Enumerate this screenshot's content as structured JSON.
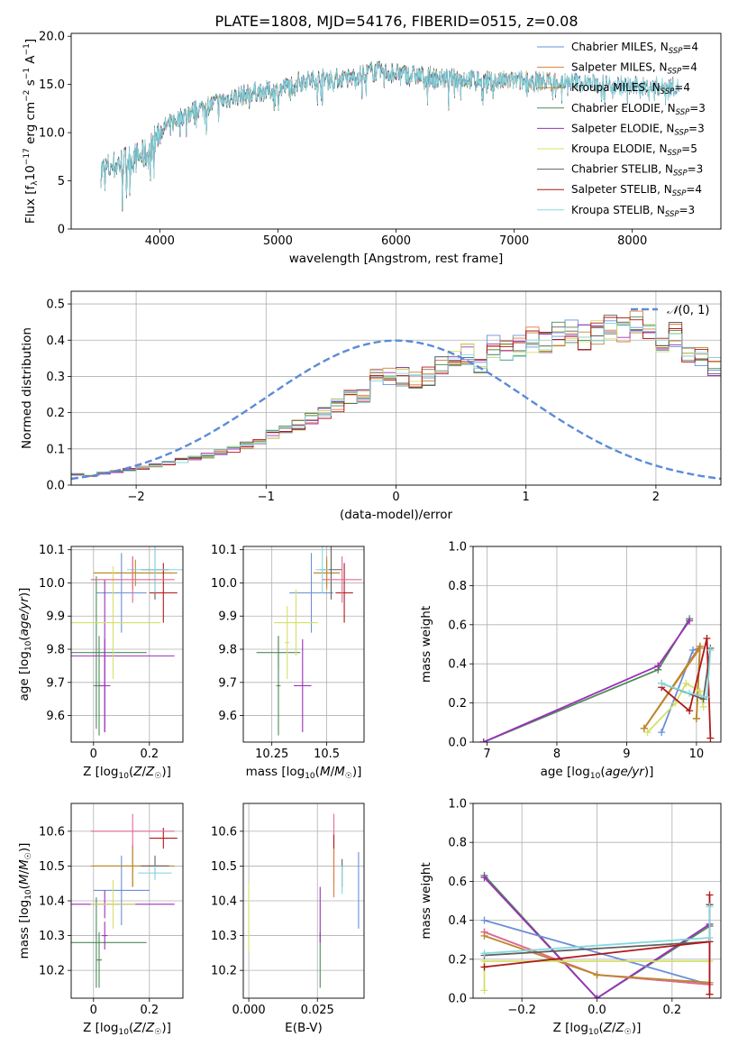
{
  "figure_title": "PLATE=1808, MJD=54176, FIBERID=0515, z=0.08",
  "colors": {
    "Chabrier MILES": "#6a8fd8",
    "Salpeter MILES": "#e07b39",
    "Kroupa MILES": "#b8892a",
    "Chabrier ELODIE": "#4f8a5a",
    "Salpeter ELODIE": "#9b30b8",
    "Kroupa ELODIE": "#d4e06a",
    "Chabrier STELIB": "#606060",
    "Salpeter STELIB": "#b01818",
    "Kroupa STELIB": "#86d8e0",
    "Salpeter MILES dist": "#e06a9a"
  },
  "chart_data": [
    {
      "id": "spectrum",
      "type": "line",
      "title": "PLATE=1808, MJD=54176, FIBERID=0515, z=0.08",
      "xlabel": "wavelength [Angstrom, rest frame]",
      "ylabel": "Flux [f_λ10^-17 erg cm^-2 s^-1 A^-1]",
      "xlim": [
        3250,
        8750
      ],
      "ylim": [
        0,
        20.3
      ],
      "xticks": [
        4000,
        5000,
        6000,
        7000,
        8000
      ],
      "yticks": [
        0,
        5,
        10,
        15,
        20
      ],
      "legend_loc": "right",
      "legend": [
        {
          "name": "Chabrier MILES, N_SSP=4",
          "base": "Chabrier MILES",
          "sub": "SSP",
          "suffix": "=4"
        },
        {
          "name": "Salpeter MILES, N_SSP=4",
          "base": "Salpeter MILES",
          "sub": "SSP",
          "suffix": "=4"
        },
        {
          "name": "Kroupa MILES, N_SSP=4",
          "base": "Kroupa MILES",
          "sub": "SSP",
          "suffix": "=4"
        },
        {
          "name": "Chabrier ELODIE, N_SSP=3",
          "base": "Chabrier ELODIE",
          "sub": "SSP",
          "suffix": "=3"
        },
        {
          "name": "Salpeter ELODIE, N_SSP=3",
          "base": "Salpeter ELODIE",
          "sub": "SSP",
          "suffix": "=3"
        },
        {
          "name": "Kroupa ELODIE, N_SSP=5",
          "base": "Kroupa ELODIE",
          "sub": "SSP",
          "suffix": "=5"
        },
        {
          "name": "Chabrier STELIB, N_SSP=3",
          "base": "Chabrier STELIB",
          "sub": "SSP",
          "suffix": "=3"
        },
        {
          "name": "Salpeter STELIB, N_SSP=4",
          "base": "Salpeter STELIB",
          "sub": "SSP",
          "suffix": "=4"
        },
        {
          "name": "Kroupa STELIB, N_SSP=3",
          "base": "Kroupa STELIB",
          "sub": "SSP",
          "suffix": "=3"
        }
      ],
      "continuum": {
        "x": [
          3500,
          3700,
          3900,
          4000,
          4200,
          4400,
          4600,
          4800,
          5000,
          5200,
          5400,
          5600,
          5800,
          6000,
          6200,
          6400,
          6600,
          6800,
          7000,
          7200,
          7400,
          7600,
          7800,
          8000,
          8200,
          8400
        ],
        "y": [
          6.0,
          7.0,
          7.8,
          10.2,
          11.8,
          12.8,
          13.6,
          14.2,
          14.4,
          15.4,
          15.6,
          15.6,
          16.4,
          16.2,
          15.9,
          15.6,
          15.6,
          15.3,
          15.4,
          15.3,
          15.3,
          15.2,
          15.0,
          14.8,
          14.8,
          14.7
        ]
      }
    },
    {
      "id": "residuals",
      "type": "histogram",
      "xlabel": "(data-model)/error",
      "ylabel": "Normed distribution",
      "xlim": [
        -2.5,
        2.5
      ],
      "ylim": [
        0,
        0.535
      ],
      "xticks": [
        -2,
        -1,
        0,
        1,
        2
      ],
      "xtick_labels": [
        "−2",
        "−1",
        "0",
        "1",
        "2"
      ],
      "yticks": [
        0.0,
        0.1,
        0.2,
        0.3,
        0.4,
        0.5
      ],
      "grid": true,
      "legend_loc": "top-right",
      "reference": {
        "name": "𝒩(0,1)",
        "label_prefix": "𝒩",
        "label_suffix": "(0, 1)",
        "mean": 0,
        "sigma": 1
      },
      "bin_width": 0.1,
      "bin_start": -2.5,
      "base_heights": [
        0.03,
        0.026,
        0.033,
        0.038,
        0.042,
        0.048,
        0.054,
        0.061,
        0.068,
        0.074,
        0.082,
        0.092,
        0.1,
        0.11,
        0.125,
        0.14,
        0.15,
        0.165,
        0.185,
        0.2,
        0.22,
        0.245,
        0.25,
        0.3,
        0.3,
        0.3,
        0.29,
        0.3,
        0.33,
        0.34,
        0.36,
        0.34,
        0.38,
        0.37,
        0.38,
        0.4,
        0.4,
        0.42,
        0.43,
        0.41,
        0.42,
        0.44,
        0.43,
        0.45,
        0.43,
        0.38,
        0.42,
        0.36,
        0.35,
        0.33,
        0.3,
        0.3,
        0.26,
        0.25,
        0.23,
        0.21,
        0.2,
        0.18,
        0.17,
        0.15,
        0.145,
        0.14,
        0.13,
        0.12,
        0.11,
        0.09,
        0.08,
        0.07,
        0.06,
        0.055,
        0.05,
        0.045,
        0.04,
        0.036,
        0.033,
        0.03,
        0.028,
        0.026,
        0.024,
        0.022
      ]
    },
    {
      "id": "age-vs-z",
      "type": "scatter",
      "xlabel": "Z [log10(Z/Z☉)]",
      "ylabel": "age [log10(age/yr)]",
      "xlim": [
        -0.08,
        0.32
      ],
      "ylim": [
        9.52,
        10.11
      ],
      "xticks": [
        0.0,
        0.2
      ],
      "yticks": [
        9.6,
        9.7,
        9.8,
        9.9,
        10.0,
        10.1
      ],
      "grid": true,
      "points": [
        {
          "s": "Chabrier MILES",
          "x": 0.1,
          "y": 9.97,
          "xe": 0.09,
          "ye": 0.12
        },
        {
          "s": "Salpeter MILES",
          "x": 0.14,
          "y": 10.03,
          "xe": 0.14,
          "ye": 0.05
        },
        {
          "s": "Kroupa MILES",
          "x": 0.15,
          "y": 10.03,
          "xe": 0.15,
          "ye": 0.04
        },
        {
          "s": "Chabrier ELODIE",
          "x": 0.01,
          "y": 9.79,
          "xe": 0.18,
          "ye": 0.23
        },
        {
          "s": "Salpeter ELODIE",
          "x": 0.04,
          "y": 9.78,
          "xe": 0.25,
          "ye": 0.23
        },
        {
          "s": "Kroupa ELODIE",
          "x": 0.07,
          "y": 9.88,
          "xe": 0.17,
          "ye": 0.17
        },
        {
          "s": "Chabrier STELIB",
          "x": 0.22,
          "y": 10.04,
          "xe": 0.05,
          "ye": 0.09
        },
        {
          "s": "Salpeter STELIB",
          "x": 0.25,
          "y": 9.97,
          "xe": 0.05,
          "ye": 0.09
        },
        {
          "s": "Kroupa STELIB",
          "x": 0.22,
          "y": 10.04,
          "xe": 0.1,
          "ye": 0.07
        },
        {
          "s": "Salpeter MILES dist",
          "x": 0.14,
          "y": 10.01,
          "xe": 0.15,
          "ye": 0.07
        },
        {
          "s": "Chabrier ELODIE",
          "x": 0.02,
          "y": 9.69,
          "xe": 0.02,
          "ye": 0.15
        },
        {
          "s": "Salpeter ELODIE",
          "x": 0.04,
          "y": 9.69,
          "xe": 0.02,
          "ye": 0.14
        }
      ]
    },
    {
      "id": "age-vs-mass",
      "type": "scatter",
      "xlabel": "mass [log10(M/M☉)]",
      "ylabel": "",
      "xlim": [
        10.12,
        10.67
      ],
      "ylim": [
        9.52,
        10.11
      ],
      "xticks": [
        10.25,
        10.5
      ],
      "yticks": [
        9.6,
        9.7,
        9.8,
        9.9,
        10.0,
        10.1
      ],
      "grid": true,
      "points": [
        {
          "s": "Chabrier MILES",
          "x": 10.43,
          "y": 9.97,
          "xe": 0.1,
          "ye": 0.12
        },
        {
          "s": "Salpeter MILES",
          "x": 10.5,
          "y": 10.03,
          "xe": 0.06,
          "ye": 0.05
        },
        {
          "s": "Kroupa MILES",
          "x": 10.5,
          "y": 10.03,
          "xe": 0.06,
          "ye": 0.04
        },
        {
          "s": "Chabrier ELODIE",
          "x": 10.28,
          "y": 9.79,
          "xe": 0.1,
          "ye": 0.05
        },
        {
          "s": "Salpeter ELODIE",
          "x": 10.39,
          "y": 9.69,
          "xe": 0.04,
          "ye": 0.14
        },
        {
          "s": "Kroupa ELODIE",
          "x": 10.36,
          "y": 9.88,
          "xe": 0.1,
          "ye": 0.1
        },
        {
          "s": "Chabrier STELIB",
          "x": 10.52,
          "y": 10.04,
          "xe": 0.05,
          "ye": 0.09
        },
        {
          "s": "Salpeter STELIB",
          "x": 10.58,
          "y": 9.97,
          "xe": 0.04,
          "ye": 0.09
        },
        {
          "s": "Kroupa STELIB",
          "x": 10.48,
          "y": 10.04,
          "xe": 0.03,
          "ye": 0.07
        },
        {
          "s": "Salpeter MILES dist",
          "x": 10.57,
          "y": 10.01,
          "xe": 0.09,
          "ye": 0.07
        },
        {
          "s": "Chabrier ELODIE",
          "x": 10.28,
          "y": 9.69,
          "xe": 0.01,
          "ye": 0.15
        },
        {
          "s": "Kroupa ELODIE",
          "x": 10.32,
          "y": 9.82,
          "xe": 0.01,
          "ye": 0.11
        }
      ]
    },
    {
      "id": "weight-vs-age",
      "type": "line",
      "xlabel": "age [log10(age/yr)]",
      "ylabel": "mass weight",
      "xlim": [
        6.8,
        10.35
      ],
      "ylim": [
        0,
        1.0
      ],
      "xticks": [
        7,
        8,
        9,
        10
      ],
      "yticks": [
        0.0,
        0.2,
        0.4,
        0.6,
        0.8,
        1.0
      ],
      "grid": true,
      "series": [
        {
          "s": "Chabrier ELODIE",
          "x": [
            6.95,
            9.45,
            9.9
          ],
          "y": [
            0.0,
            0.37,
            0.63
          ]
        },
        {
          "s": "Salpeter ELODIE",
          "x": [
            6.95,
            9.45,
            9.9
          ],
          "y": [
            0.0,
            0.39,
            0.62
          ]
        },
        {
          "s": "Chabrier MILES",
          "x": [
            9.5,
            9.95,
            10.05
          ],
          "y": [
            0.05,
            0.47,
            0.48
          ]
        },
        {
          "s": "Salpeter MILES",
          "x": [
            9.25,
            10.05,
            10.0
          ],
          "y": [
            0.07,
            0.48,
            0.12
          ]
        },
        {
          "s": "Kroupa MILES",
          "x": [
            9.25,
            10.05,
            10.0
          ],
          "y": [
            0.07,
            0.49,
            0.12
          ]
        },
        {
          "s": "Kroupa ELODIE",
          "x": [
            9.3,
            9.7,
            9.85,
            10.05,
            10.1
          ],
          "y": [
            0.05,
            0.2,
            0.3,
            0.26,
            0.18
          ]
        },
        {
          "s": "Chabrier STELIB",
          "x": [
            9.5,
            10.1,
            10.2
          ],
          "y": [
            0.3,
            0.22,
            0.48
          ]
        },
        {
          "s": "Salpeter STELIB",
          "x": [
            9.5,
            9.9,
            10.15,
            10.2
          ],
          "y": [
            0.28,
            0.16,
            0.53,
            0.02
          ]
        },
        {
          "s": "Kroupa STELIB",
          "x": [
            9.5,
            9.9,
            10.15,
            10.2
          ],
          "y": [
            0.3,
            0.25,
            0.23,
            0.47
          ]
        }
      ]
    },
    {
      "id": "mass-vs-z",
      "type": "scatter",
      "xlabel": "Z [log10(Z/Z☉)]",
      "ylabel": "mass [log10(M/M☉)]",
      "xlim": [
        -0.08,
        0.32
      ],
      "ylim": [
        10.12,
        10.68
      ],
      "xticks": [
        0.0,
        0.2
      ],
      "yticks": [
        10.2,
        10.3,
        10.4,
        10.5,
        10.6
      ],
      "grid": true,
      "points": [
        {
          "s": "Chabrier MILES",
          "x": 0.1,
          "y": 10.43,
          "xe": 0.1,
          "ye": 0.1
        },
        {
          "s": "Salpeter MILES",
          "x": 0.14,
          "y": 10.5,
          "xe": 0.14,
          "ye": 0.06
        },
        {
          "s": "Kroupa MILES",
          "x": 0.14,
          "y": 10.5,
          "xe": 0.15,
          "ye": 0.06
        },
        {
          "s": "Chabrier ELODIE",
          "x": 0.01,
          "y": 10.28,
          "xe": 0.18,
          "ye": 0.13
        },
        {
          "s": "Salpeter ELODIE",
          "x": 0.04,
          "y": 10.39,
          "xe": 0.25,
          "ye": 0.04
        },
        {
          "s": "Kroupa ELODIE",
          "x": 0.07,
          "y": 10.39,
          "xe": 0.08,
          "ye": 0.07
        },
        {
          "s": "Chabrier STELIB",
          "x": 0.22,
          "y": 10.5,
          "xe": 0.05,
          "ye": 0.03
        },
        {
          "s": "Salpeter STELIB",
          "x": 0.25,
          "y": 10.58,
          "xe": 0.05,
          "ye": 0.03
        },
        {
          "s": "Kroupa STELIB",
          "x": 0.22,
          "y": 10.48,
          "xe": 0.06,
          "ye": 0.02
        },
        {
          "s": "Salpeter MILES dist",
          "x": 0.14,
          "y": 10.6,
          "xe": 0.15,
          "ye": 0.05
        },
        {
          "s": "Chabrier ELODIE",
          "x": 0.02,
          "y": 10.23,
          "xe": 0.01,
          "ye": 0.08
        },
        {
          "s": "Salpeter ELODIE",
          "x": 0.04,
          "y": 10.3,
          "xe": 0.01,
          "ye": 0.04
        }
      ]
    },
    {
      "id": "mass-vs-ebv",
      "type": "scatter",
      "xlabel": "E(B-V)",
      "ylabel": "",
      "xlim": [
        -0.002,
        0.042
      ],
      "ylim": [
        10.12,
        10.68
      ],
      "xticks": [
        0.0,
        0.025
      ],
      "xtick_labels": [
        "0.000",
        "0.025"
      ],
      "yticks": [
        10.2,
        10.3,
        10.4,
        10.5,
        10.6
      ],
      "grid": true,
      "points": [
        {
          "s": "Kroupa ELODIE",
          "x": 0.0,
          "y": 10.35,
          "xe": 0.0,
          "ye": 0.1
        },
        {
          "s": "Chabrier ELODIE",
          "x": 0.026,
          "y": 10.23,
          "xe": 0.0,
          "ye": 0.08
        },
        {
          "s": "Salpeter ELODIE",
          "x": 0.026,
          "y": 10.36,
          "xe": 0.0,
          "ye": 0.08
        },
        {
          "s": "Salpeter MILES dist",
          "x": 0.031,
          "y": 10.6,
          "xe": 0.0,
          "ye": 0.05
        },
        {
          "s": "Salpeter STELIB",
          "x": 0.031,
          "y": 10.52,
          "xe": 0.0,
          "ye": 0.07
        },
        {
          "s": "Salpeter MILES",
          "x": 0.031,
          "y": 10.48,
          "xe": 0.0,
          "ye": 0.07
        },
        {
          "s": "Chabrier STELIB",
          "x": 0.034,
          "y": 10.48,
          "xe": 0.0,
          "ye": 0.04
        },
        {
          "s": "Kroupa STELIB",
          "x": 0.034,
          "y": 10.46,
          "xe": 0.0,
          "ye": 0.04
        },
        {
          "s": "Chabrier MILES",
          "x": 0.04,
          "y": 10.43,
          "xe": 0.0,
          "ye": 0.11
        }
      ]
    },
    {
      "id": "weight-vs-z",
      "type": "line",
      "xlabel": "Z [log10(Z/Z☉)]",
      "ylabel": "mass weight",
      "xlim": [
        -0.33,
        0.33
      ],
      "ylim": [
        0,
        1.0
      ],
      "xticks": [
        -0.2,
        0.0,
        0.2
      ],
      "xtick_labels": [
        "−0.2",
        "0.0",
        "0.2"
      ],
      "yticks": [
        0.0,
        0.2,
        0.4,
        0.6,
        0.8,
        1.0
      ],
      "grid": true,
      "series": [
        {
          "s": "Chabrier ELODIE",
          "x": [
            -0.3,
            0.0,
            0.3
          ],
          "y": [
            0.63,
            0.0,
            0.37
          ]
        },
        {
          "s": "Salpeter ELODIE",
          "x": [
            -0.3,
            0.0,
            0.3
          ],
          "y": [
            0.62,
            0.0,
            0.38
          ]
        },
        {
          "s": "Chabrier MILES",
          "x": [
            -0.3,
            0.3,
            0.3
          ],
          "y": [
            0.4,
            0.07,
            0.48
          ]
        },
        {
          "s": "Salpeter MILES",
          "x": [
            -0.3,
            0.0,
            0.3
          ],
          "y": [
            0.34,
            0.12,
            0.07
          ]
        },
        {
          "s": "Salpeter MILES dist",
          "x": [
            -0.3,
            0.0,
            0.3
          ],
          "y": [
            0.34,
            0.12,
            0.07
          ]
        },
        {
          "s": "Kroupa MILES",
          "x": [
            -0.3,
            0.0,
            0.3
          ],
          "y": [
            0.32,
            0.12,
            0.08
          ]
        },
        {
          "s": "Kroupa ELODIE",
          "x": [
            -0.3,
            -0.3,
            0.3
          ],
          "y": [
            0.04,
            0.19,
            0.19
          ]
        },
        {
          "s": "Chabrier STELIB",
          "x": [
            -0.3,
            0.3,
            0.3
          ],
          "y": [
            0.22,
            0.29,
            0.48
          ]
        },
        {
          "s": "Salpeter STELIB",
          "x": [
            -0.3,
            0.3,
            0.3,
            0.3
          ],
          "y": [
            0.16,
            0.29,
            0.53,
            0.02
          ]
        },
        {
          "s": "Kroupa STELIB",
          "x": [
            -0.3,
            0.3,
            0.3
          ],
          "y": [
            0.23,
            0.31,
            0.47
          ]
        }
      ]
    }
  ]
}
